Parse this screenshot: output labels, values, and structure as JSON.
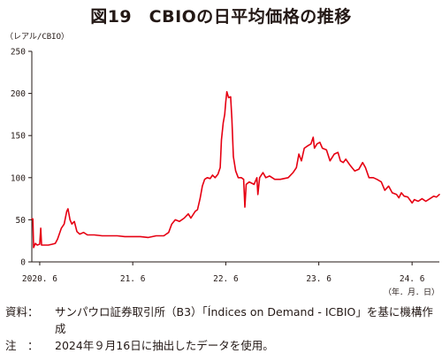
{
  "chart_data": {
    "type": "line",
    "title": "図19　CBIOの日平均価格の推移",
    "ylabel": "（レアル/CBIO）",
    "xlabel": "（年．月．日）",
    "ylim": [
      0,
      250
    ],
    "yticks": [
      0,
      50,
      100,
      150,
      200,
      250
    ],
    "xlim": [
      "2020-05-01",
      "2024-09-16"
    ],
    "xticks": [
      {
        "date": "2020-06-01",
        "label": "2020. 6"
      },
      {
        "date": "2021-06-01",
        "label": "21. 6"
      },
      {
        "date": "2022-06-01",
        "label": "22. 6"
      },
      {
        "date": "2023-06-01",
        "label": "23. 6"
      },
      {
        "date": "2024-06-01",
        "label": "24. 6"
      }
    ],
    "grid": false,
    "series": [
      {
        "color": "#e60012",
        "points": [
          [
            "2020-05-01",
            51
          ],
          [
            "2020-05-05",
            51
          ],
          [
            "2020-05-08",
            17
          ],
          [
            "2020-05-15",
            22
          ],
          [
            "2020-05-22",
            20
          ],
          [
            "2020-06-01",
            21
          ],
          [
            "2020-06-05",
            40
          ],
          [
            "2020-06-08",
            20
          ],
          [
            "2020-06-20",
            20
          ],
          [
            "2020-07-05",
            20
          ],
          [
            "2020-07-20",
            21
          ],
          [
            "2020-08-01",
            22
          ],
          [
            "2020-08-10",
            27
          ],
          [
            "2020-08-25",
            40
          ],
          [
            "2020-09-05",
            45
          ],
          [
            "2020-09-15",
            60
          ],
          [
            "2020-09-20",
            63
          ],
          [
            "2020-09-28",
            50
          ],
          [
            "2020-10-05",
            45
          ],
          [
            "2020-10-15",
            48
          ],
          [
            "2020-10-25",
            36
          ],
          [
            "2020-11-05",
            33
          ],
          [
            "2020-11-20",
            35
          ],
          [
            "2020-12-05",
            32
          ],
          [
            "2021-01-01",
            32
          ],
          [
            "2021-02-01",
            31
          ],
          [
            "2021-03-01",
            31
          ],
          [
            "2021-04-01",
            31
          ],
          [
            "2021-05-01",
            30
          ],
          [
            "2021-06-01",
            30
          ],
          [
            "2021-07-01",
            30
          ],
          [
            "2021-08-01",
            29
          ],
          [
            "2021-09-01",
            31
          ],
          [
            "2021-10-01",
            31
          ],
          [
            "2021-10-20",
            35
          ],
          [
            "2021-11-01",
            45
          ],
          [
            "2021-11-15",
            50
          ],
          [
            "2021-12-01",
            48
          ],
          [
            "2021-12-20",
            52
          ],
          [
            "2022-01-05",
            57
          ],
          [
            "2022-01-15",
            52
          ],
          [
            "2022-02-01",
            60
          ],
          [
            "2022-02-10",
            62
          ],
          [
            "2022-02-20",
            75
          ],
          [
            "2022-03-01",
            90
          ],
          [
            "2022-03-10",
            98
          ],
          [
            "2022-03-20",
            100
          ],
          [
            "2022-04-01",
            99
          ],
          [
            "2022-04-10",
            103
          ],
          [
            "2022-04-20",
            100
          ],
          [
            "2022-05-01",
            104
          ],
          [
            "2022-05-10",
            112
          ],
          [
            "2022-05-15",
            145
          ],
          [
            "2022-05-22",
            165
          ],
          [
            "2022-05-28",
            175
          ],
          [
            "2022-06-01",
            190
          ],
          [
            "2022-06-05",
            202
          ],
          [
            "2022-06-12",
            195
          ],
          [
            "2022-06-20",
            196
          ],
          [
            "2022-06-25",
            170
          ],
          [
            "2022-07-01",
            125
          ],
          [
            "2022-07-10",
            108
          ],
          [
            "2022-07-20",
            100
          ],
          [
            "2022-08-01",
            100
          ],
          [
            "2022-08-10",
            98
          ],
          [
            "2022-08-15",
            65
          ],
          [
            "2022-08-20",
            92
          ],
          [
            "2022-09-01",
            95
          ],
          [
            "2022-09-20",
            92
          ],
          [
            "2022-10-01",
            100
          ],
          [
            "2022-10-05",
            80
          ],
          [
            "2022-10-12",
            100
          ],
          [
            "2022-10-25",
            106
          ],
          [
            "2022-11-05",
            100
          ],
          [
            "2022-11-20",
            102
          ],
          [
            "2022-12-10",
            98
          ],
          [
            "2023-01-01",
            98
          ],
          [
            "2023-02-01",
            100
          ],
          [
            "2023-02-20",
            106
          ],
          [
            "2023-03-05",
            112
          ],
          [
            "2023-03-15",
            128
          ],
          [
            "2023-03-25",
            120
          ],
          [
            "2023-04-05",
            135
          ],
          [
            "2023-04-20",
            138
          ],
          [
            "2023-05-01",
            140
          ],
          [
            "2023-05-10",
            148
          ],
          [
            "2023-05-15",
            135
          ],
          [
            "2023-05-25",
            140
          ],
          [
            "2023-06-05",
            142
          ],
          [
            "2023-06-15",
            135
          ],
          [
            "2023-07-01",
            133
          ],
          [
            "2023-07-15",
            120
          ],
          [
            "2023-08-01",
            128
          ],
          [
            "2023-08-15",
            130
          ],
          [
            "2023-08-25",
            120
          ],
          [
            "2023-09-05",
            118
          ],
          [
            "2023-09-15",
            122
          ],
          [
            "2023-10-01",
            115
          ],
          [
            "2023-10-20",
            108
          ],
          [
            "2023-11-05",
            110
          ],
          [
            "2023-11-20",
            118
          ],
          [
            "2023-12-01",
            112
          ],
          [
            "2023-12-15",
            100
          ],
          [
            "2024-01-01",
            100
          ],
          [
            "2024-01-15",
            98
          ],
          [
            "2024-02-01",
            95
          ],
          [
            "2024-02-15",
            85
          ],
          [
            "2024-03-01",
            90
          ],
          [
            "2024-03-15",
            82
          ],
          [
            "2024-04-01",
            80
          ],
          [
            "2024-04-10",
            76
          ],
          [
            "2024-04-20",
            82
          ],
          [
            "2024-05-01",
            78
          ],
          [
            "2024-05-15",
            77
          ],
          [
            "2024-06-01",
            70
          ],
          [
            "2024-06-10",
            74
          ],
          [
            "2024-06-25",
            72
          ],
          [
            "2024-07-10",
            75
          ],
          [
            "2024-07-25",
            72
          ],
          [
            "2024-08-10",
            75
          ],
          [
            "2024-08-25",
            78
          ],
          [
            "2024-09-05",
            77
          ],
          [
            "2024-09-16",
            80
          ]
        ]
      }
    ]
  },
  "notes": [
    {
      "key": "資料：",
      "text": "サンパウロ証券取引所（B3）「Índices on Demand - ICBIO」を基に機構作成"
    },
    {
      "key": "注　：",
      "text": "2024年９月16日に抽出したデータを使用。"
    }
  ]
}
